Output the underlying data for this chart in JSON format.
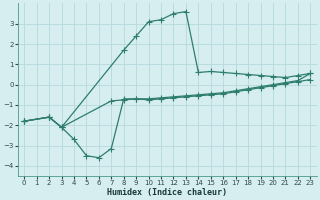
{
  "xlabel": "Humidex (Indice chaleur)",
  "bg_color": "#d6eef0",
  "grid_color": "#b5d8dc",
  "line_color": "#2e7d6e",
  "xlim": [
    -0.5,
    23.5
  ],
  "ylim": [
    -4.5,
    4.0
  ],
  "xticks": [
    0,
    1,
    2,
    3,
    4,
    5,
    6,
    7,
    8,
    9,
    10,
    11,
    12,
    13,
    14,
    15,
    16,
    17,
    18,
    19,
    20,
    21,
    22,
    23
  ],
  "yticks": [
    -4,
    -3,
    -2,
    -1,
    0,
    1,
    2,
    3
  ],
  "series1_x": [
    0,
    2,
    3,
    4,
    5,
    6,
    7,
    8,
    9,
    10,
    11,
    12,
    13,
    14,
    15,
    16,
    17,
    18,
    19,
    20,
    21,
    22,
    23
  ],
  "series1_y": [
    -1.8,
    -1.6,
    -2.1,
    -2.7,
    -3.5,
    -3.6,
    -3.15,
    -0.7,
    -0.7,
    -0.75,
    -0.7,
    -0.65,
    -0.6,
    -0.55,
    -0.5,
    -0.45,
    -0.35,
    -0.25,
    -0.15,
    -0.05,
    0.05,
    0.15,
    0.25
  ],
  "series2_x": [
    0,
    2,
    3,
    7,
    8,
    9,
    10,
    11,
    12,
    13,
    14,
    15,
    16,
    17,
    18,
    19,
    20,
    21,
    22,
    23
  ],
  "series2_y": [
    -1.8,
    -1.6,
    -2.1,
    -0.8,
    -0.75,
    -0.7,
    -0.7,
    -0.65,
    -0.6,
    -0.55,
    -0.5,
    -0.45,
    -0.4,
    -0.3,
    -0.2,
    -0.1,
    0.0,
    0.1,
    0.2,
    0.55
  ],
  "series3_x": [
    0,
    2,
    3,
    8,
    9,
    10,
    11,
    12,
    13,
    14,
    15,
    16,
    17,
    18,
    19,
    20,
    21,
    22,
    23
  ],
  "series3_y": [
    -1.8,
    -1.6,
    -2.1,
    1.7,
    2.4,
    3.1,
    3.2,
    3.5,
    3.6,
    0.6,
    0.65,
    0.6,
    0.55,
    0.5,
    0.45,
    0.4,
    0.35,
    0.45,
    0.55
  ]
}
